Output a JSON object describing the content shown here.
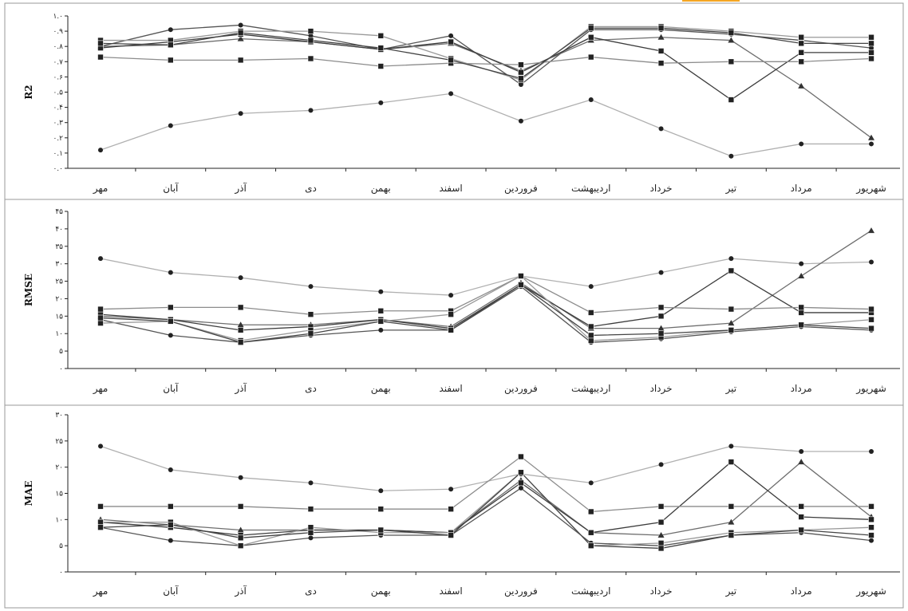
{
  "figure": {
    "categories": [
      "مهر",
      "آبان",
      "آذر",
      "دی",
      "بهمن",
      "اسفند",
      "فروردین",
      "اردیبهشت",
      "خرداد",
      "تیر",
      "مرداد",
      "شهریور"
    ]
  },
  "chart_data": [
    {
      "type": "line",
      "ylabel": "R2",
      "ylim": [
        0,
        1
      ],
      "yticks": [
        "۰.۰",
        "۰.۱",
        "۰.۲",
        "۰.۳",
        "۰.۴",
        "۰.۵",
        "۰.۶",
        "۰.۷",
        "۰.۸",
        "۰.۹",
        "۱.۰"
      ],
      "grid": false,
      "series": [
        {
          "color": "#b0b0b0",
          "marker": "circle",
          "values": [
            0.12,
            0.28,
            0.36,
            0.38,
            0.43,
            0.49,
            0.31,
            0.45,
            0.26,
            0.08,
            0.16,
            0.16
          ]
        },
        {
          "color": "#555555",
          "marker": "circle",
          "values": [
            0.8,
            0.91,
            0.94,
            0.87,
            0.78,
            0.87,
            0.55,
            0.91,
            0.91,
            0.88,
            0.84,
            0.79
          ]
        },
        {
          "color": "#6e6e6e",
          "marker": "triangle",
          "values": [
            0.8,
            0.81,
            0.85,
            0.83,
            0.78,
            0.82,
            0.64,
            0.84,
            0.86,
            0.84,
            0.54,
            0.2
          ]
        },
        {
          "color": "#3c3c3c",
          "marker": "square",
          "values": [
            0.79,
            0.83,
            0.88,
            0.83,
            0.78,
            0.83,
            0.63,
            0.86,
            0.77,
            0.45,
            0.76,
            0.76
          ]
        },
        {
          "color": "#8c8c8c",
          "marker": "square",
          "values": [
            0.73,
            0.71,
            0.71,
            0.72,
            0.67,
            0.69,
            0.68,
            0.73,
            0.69,
            0.7,
            0.7,
            0.72
          ]
        },
        {
          "color": "#999999",
          "marker": "square",
          "values": [
            0.84,
            0.84,
            0.9,
            0.9,
            0.87,
            0.72,
            0.58,
            0.93,
            0.93,
            0.9,
            0.86,
            0.86
          ]
        },
        {
          "color": "#444444",
          "marker": "square",
          "values": [
            0.82,
            0.81,
            0.89,
            0.84,
            0.79,
            0.71,
            0.59,
            0.92,
            0.92,
            0.89,
            0.82,
            0.82
          ]
        }
      ]
    },
    {
      "type": "line",
      "ylabel": "RMSE",
      "ylim": [
        0,
        45
      ],
      "yticks": [
        "۰",
        "۵",
        "۱۰",
        "۱۵",
        "۲۰",
        "۲۵",
        "۳۰",
        "۳۵",
        "۴۰",
        "۴۵"
      ],
      "grid": false,
      "series": [
        {
          "color": "#b0b0b0",
          "marker": "circle",
          "values": [
            31.5,
            27.5,
            26,
            23.5,
            22,
            21,
            26.5,
            23.5,
            27.5,
            31.5,
            30,
            30.5
          ]
        },
        {
          "color": "#555555",
          "marker": "circle",
          "values": [
            14,
            9.5,
            7.5,
            9.5,
            11,
            11,
            23.5,
            7.5,
            8.5,
            10.5,
            12,
            11
          ]
        },
        {
          "color": "#6e6e6e",
          "marker": "triangle",
          "values": [
            15,
            14,
            12.5,
            12.5,
            14,
            12,
            24.5,
            11.5,
            11.5,
            13,
            26.5,
            39.5
          ]
        },
        {
          "color": "#3c3c3c",
          "marker": "square",
          "values": [
            15.5,
            14,
            11,
            12,
            14,
            11.5,
            24,
            12,
            15,
            28,
            16,
            16
          ]
        },
        {
          "color": "#8c8c8c",
          "marker": "square",
          "values": [
            17,
            17.5,
            17.5,
            15.5,
            16.5,
            16.5,
            26.5,
            16,
            17.5,
            17,
            17.5,
            17
          ]
        },
        {
          "color": "#999999",
          "marker": "square",
          "values": [
            13,
            13.5,
            8,
            11,
            13.5,
            15.5,
            26.5,
            8,
            9,
            11,
            12.5,
            14
          ]
        },
        {
          "color": "#444444",
          "marker": "square",
          "values": [
            14.5,
            13.5,
            7.5,
            10,
            13.5,
            11,
            24,
            9.5,
            10,
            11,
            12.5,
            11.5
          ]
        }
      ]
    },
    {
      "type": "line",
      "ylabel": "MAE",
      "ylim": [
        0,
        30
      ],
      "yticks": [
        "۰",
        "۵",
        "۱۰",
        "۱۵",
        "۲۰",
        "۲۵",
        "۳۰"
      ],
      "grid": false,
      "series": [
        {
          "color": "#b0b0b0",
          "marker": "circle",
          "values": [
            24,
            19.5,
            18,
            17,
            15.5,
            15.8,
            18.7,
            17,
            20.5,
            24,
            23,
            23
          ]
        },
        {
          "color": "#555555",
          "marker": "circle",
          "values": [
            8.5,
            6,
            5,
            6.5,
            7,
            7,
            16,
            5.5,
            5,
            7,
            7.5,
            6
          ]
        },
        {
          "color": "#6e6e6e",
          "marker": "triangle",
          "values": [
            10,
            9,
            8,
            8,
            8,
            7.5,
            17.5,
            7.5,
            7,
            9.5,
            21,
            10.5
          ]
        },
        {
          "color": "#3c3c3c",
          "marker": "square",
          "values": [
            9.5,
            8.5,
            7,
            8,
            8,
            7.5,
            17,
            7.5,
            9.5,
            21,
            10.5,
            10
          ]
        },
        {
          "color": "#8c8c8c",
          "marker": "square",
          "values": [
            12.5,
            12.5,
            12.5,
            12,
            12,
            12,
            22,
            11.5,
            12.5,
            12.5,
            12.5,
            12.5
          ]
        },
        {
          "color": "#999999",
          "marker": "square",
          "values": [
            9.5,
            9.5,
            5,
            8.5,
            7.5,
            7.5,
            19,
            5,
            5.5,
            7.5,
            8,
            8.5
          ]
        },
        {
          "color": "#444444",
          "marker": "square",
          "values": [
            8.5,
            9,
            6.5,
            7.5,
            8,
            7,
            19,
            5,
            4.5,
            7,
            8,
            7
          ]
        }
      ]
    }
  ]
}
